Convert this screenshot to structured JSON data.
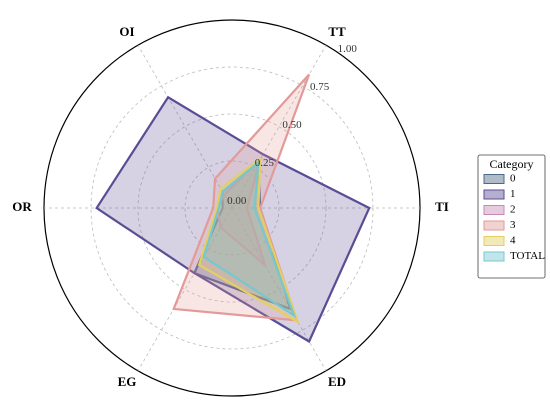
{
  "chart_data": {
    "type": "radar",
    "categories": [
      "TI",
      "TT",
      "OI",
      "OR",
      "EG",
      "ED"
    ],
    "ylim": [
      0,
      1
    ],
    "yticks": [
      {
        "value": 0,
        "label": "0.00"
      },
      0.25,
      {
        "value": 0.5,
        "label": "0.50"
      },
      0.75,
      {
        "value": 1,
        "label": "1.00"
      }
    ],
    "grid": true,
    "legend_title": "Category",
    "legend_position": "right",
    "series": [
      {
        "name": "0",
        "color": "#4c6a8a",
        "values": [
          0.15,
          0.28,
          0.1,
          0.05,
          0.4,
          0.62
        ]
      },
      {
        "name": "1",
        "color": "#5a4d94",
        "values": [
          0.73,
          0.33,
          0.68,
          0.72,
          0.4,
          0.82
        ]
      },
      {
        "name": "2",
        "color": "#c88ab4",
        "values": [
          0.08,
          0.3,
          0.08,
          0.08,
          0.12,
          0.35
        ]
      },
      {
        "name": "3",
        "color": "#e39a98",
        "values": [
          0.15,
          0.82,
          0.18,
          0.1,
          0.62,
          0.69
        ]
      },
      {
        "name": "4",
        "color": "#e3cf62",
        "values": [
          0.14,
          0.3,
          0.12,
          0.08,
          0.35,
          0.7
        ]
      },
      {
        "name": "TOTAL",
        "color": "#78c6d0",
        "values": [
          0.12,
          0.28,
          0.1,
          0.07,
          0.3,
          0.66
        ]
      }
    ]
  }
}
